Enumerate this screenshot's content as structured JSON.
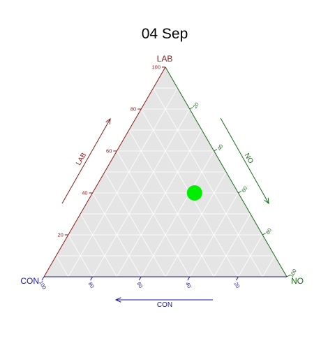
{
  "chart_data": {
    "type": "ternary-scatter",
    "title": "04 Sep",
    "axes": {
      "top": {
        "label": "LAB",
        "color": "#8b1a1a"
      },
      "right": {
        "label": "NO",
        "color": "#1a6b1a"
      },
      "left": {
        "label": "CON",
        "color": "#1a1a9c"
      }
    },
    "vertex_labels": {
      "top": "LAB",
      "right": "NO",
      "left": "CON"
    },
    "arrow_labels": {
      "left_side": "LAB",
      "right_side": "NO",
      "bottom": "CON"
    },
    "ticks": {
      "LAB": [
        20,
        40,
        60,
        80,
        100
      ],
      "NO": [
        20,
        40,
        60,
        80,
        100
      ],
      "CON": [
        20,
        40,
        60,
        80,
        100
      ]
    },
    "grid": true,
    "grid_step": 10,
    "points": [
      {
        "LAB": 40,
        "NO": 42,
        "CON": 18,
        "color": "#00ee00"
      }
    ],
    "colors": {
      "panel": "#e5e5e5",
      "grid": "#ffffff",
      "point": "#00ee00"
    }
  }
}
